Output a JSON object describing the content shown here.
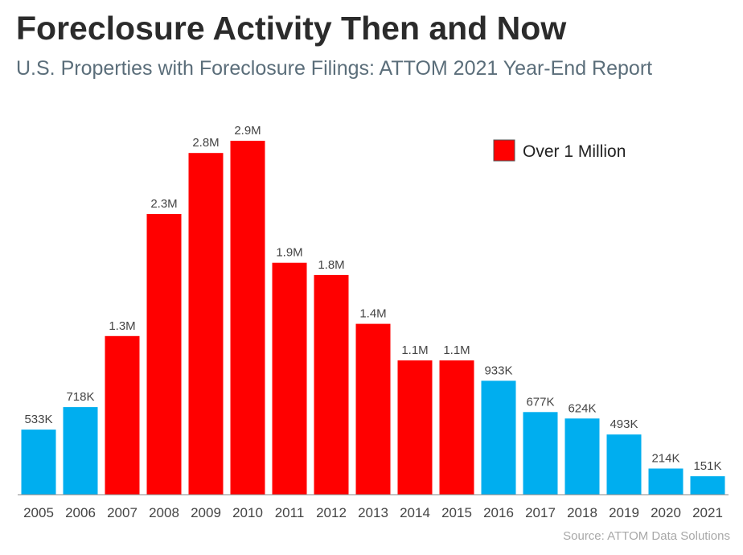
{
  "header": {
    "title": "Foreclosure Activity Then and Now",
    "subtitle": "U.S. Properties with Foreclosure Filings: ATTOM 2021 Year-End Report"
  },
  "footer": {
    "source": "Source: ATTOM Data Solutions"
  },
  "colors": {
    "over_million": "#ff0000",
    "under_million": "#00aeef",
    "axis": "#888888"
  },
  "legend": {
    "label": "Over 1 Million",
    "position": "top-right"
  },
  "chart_data": {
    "type": "bar",
    "title": "Foreclosure Activity Then and Now",
    "subtitle": "U.S. Properties with Foreclosure Filings: ATTOM 2021 Year-End Report",
    "xlabel": "",
    "ylabel": "",
    "grid": false,
    "categories": [
      "2005",
      "2006",
      "2007",
      "2008",
      "2009",
      "2010",
      "2011",
      "2012",
      "2013",
      "2014",
      "2015",
      "2016",
      "2017",
      "2018",
      "2019",
      "2020",
      "2021"
    ],
    "values": [
      533000,
      718000,
      1300000,
      2300000,
      2800000,
      2900000,
      1900000,
      1800000,
      1400000,
      1100000,
      1100000,
      933000,
      677000,
      624000,
      493000,
      214000,
      151000
    ],
    "value_labels": [
      "533K",
      "718K",
      "1.3M",
      "2.3M",
      "2.8M",
      "2.9M",
      "1.9M",
      "1.8M",
      "1.4M",
      "1.1M",
      "1.1M",
      "933K",
      "677K",
      "624K",
      "493K",
      "214K",
      "151K"
    ],
    "over_million": [
      false,
      false,
      true,
      true,
      true,
      true,
      true,
      true,
      true,
      true,
      true,
      false,
      false,
      false,
      false,
      false,
      false
    ],
    "ylim": [
      0,
      2900000
    ]
  }
}
